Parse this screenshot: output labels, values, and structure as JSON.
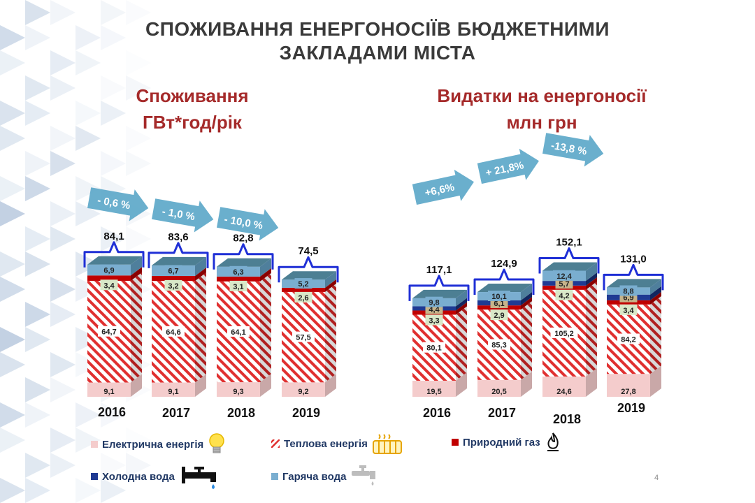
{
  "title": {
    "line1": "СПОЖИВАННЯ ЕНЕРГОНОСІЇВ БЮДЖЕТНИМИ",
    "line2": "ЗАКЛАДАМИ МІСТА"
  },
  "colors": {
    "electric": "#f4cccc",
    "heat_stripe": "#e03030",
    "gas": "#c00000",
    "cold_water": "#1f3a93",
    "hot_water": "#7aaed0",
    "top_face": "#4d7f93",
    "brace": "#1f2fd6",
    "arrow": "#5aa6c8",
    "title_red": "#a52a2a",
    "dark_blue": "#203864"
  },
  "chart_data": [
    {
      "type": "bar",
      "stacked": true,
      "title": "Споживання ГВт*год/рік",
      "title_line1": "Споживання",
      "title_line2": "ГВт*год/рік",
      "categories": [
        "2016",
        "2017",
        "2018",
        "2019"
      ],
      "series": [
        {
          "name": "Електрична енергія",
          "values": [
            9.1,
            9.1,
            9.3,
            9.2
          ],
          "labels": [
            "9,1",
            "9,1",
            "9,3",
            "9,2"
          ]
        },
        {
          "name": "Теплова енергія",
          "values": [
            64.7,
            64.6,
            64.1,
            57.5
          ],
          "labels": [
            "64,7",
            "64,6",
            "64,1",
            "57,5"
          ]
        },
        {
          "name": "Природний газ",
          "values": [
            3.4,
            3.2,
            3.1,
            2.6
          ],
          "labels": [
            "3,4",
            "3,2",
            "3,1",
            "2,6"
          ]
        },
        {
          "name": "Гаряча вода",
          "values": [
            6.9,
            6.7,
            6.3,
            5.2
          ],
          "labels": [
            "6,9",
            "6,7",
            "6,3",
            "5,2"
          ]
        }
      ],
      "totals": [
        "84,1",
        "83,6",
        "82,8",
        "74,5"
      ],
      "changes": [
        "- 0,6 %",
        "- 1,0 %",
        "- 10,0 %"
      ]
    },
    {
      "type": "bar",
      "stacked": true,
      "title": "Видатки на енергоносії млн грн",
      "title_line1": "Видатки на енергоносії",
      "title_line2": "млн грн",
      "categories": [
        "2016",
        "2017",
        "2018",
        "2019"
      ],
      "series": [
        {
          "name": "Електрична енергія",
          "values": [
            19.5,
            20.5,
            24.6,
            27.8
          ],
          "labels": [
            "19,5",
            "20,5",
            "24,6",
            "27,8"
          ]
        },
        {
          "name": "Теплова енергія",
          "values": [
            80.1,
            85.3,
            105.2,
            84.2
          ],
          "labels": [
            "80,1",
            "85,3",
            "105,2",
            "84,2"
          ]
        },
        {
          "name": "Природний газ",
          "values": [
            3.3,
            2.9,
            4.2,
            3.4
          ],
          "labels": [
            "3,3",
            "2,9",
            "4,2",
            "3,4"
          ]
        },
        {
          "name": "Холодна вода",
          "values": [
            4.4,
            6.1,
            5.7,
            6.9
          ],
          "labels": [
            "4,4",
            "6,1",
            "5,7",
            "6,9"
          ]
        },
        {
          "name": "Гаряча вода",
          "values": [
            9.8,
            10.1,
            12.4,
            8.8
          ],
          "labels": [
            "9,8",
            "10,1",
            "12,4",
            "8,8"
          ]
        }
      ],
      "totals": [
        "117,1",
        "124,9",
        "152,1",
        "131,0"
      ],
      "changes": [
        "+6,6%",
        "+ 21,8%",
        "-13,8 %"
      ]
    }
  ],
  "legend": [
    {
      "key": "electric",
      "label": "Електрична  енергія",
      "icon": "light-bulb-icon"
    },
    {
      "key": "heat",
      "label": "Теплова  енергія",
      "icon": "radiator-icon"
    },
    {
      "key": "gas",
      "label": "Природний   газ",
      "icon": "gas-flame-icon"
    },
    {
      "key": "cold",
      "label": "Холодна  вода",
      "icon": "faucet-icon"
    },
    {
      "key": "hot",
      "label": "Гаряча  вода",
      "icon": "hot-tap-icon"
    }
  ],
  "page_number": "4"
}
